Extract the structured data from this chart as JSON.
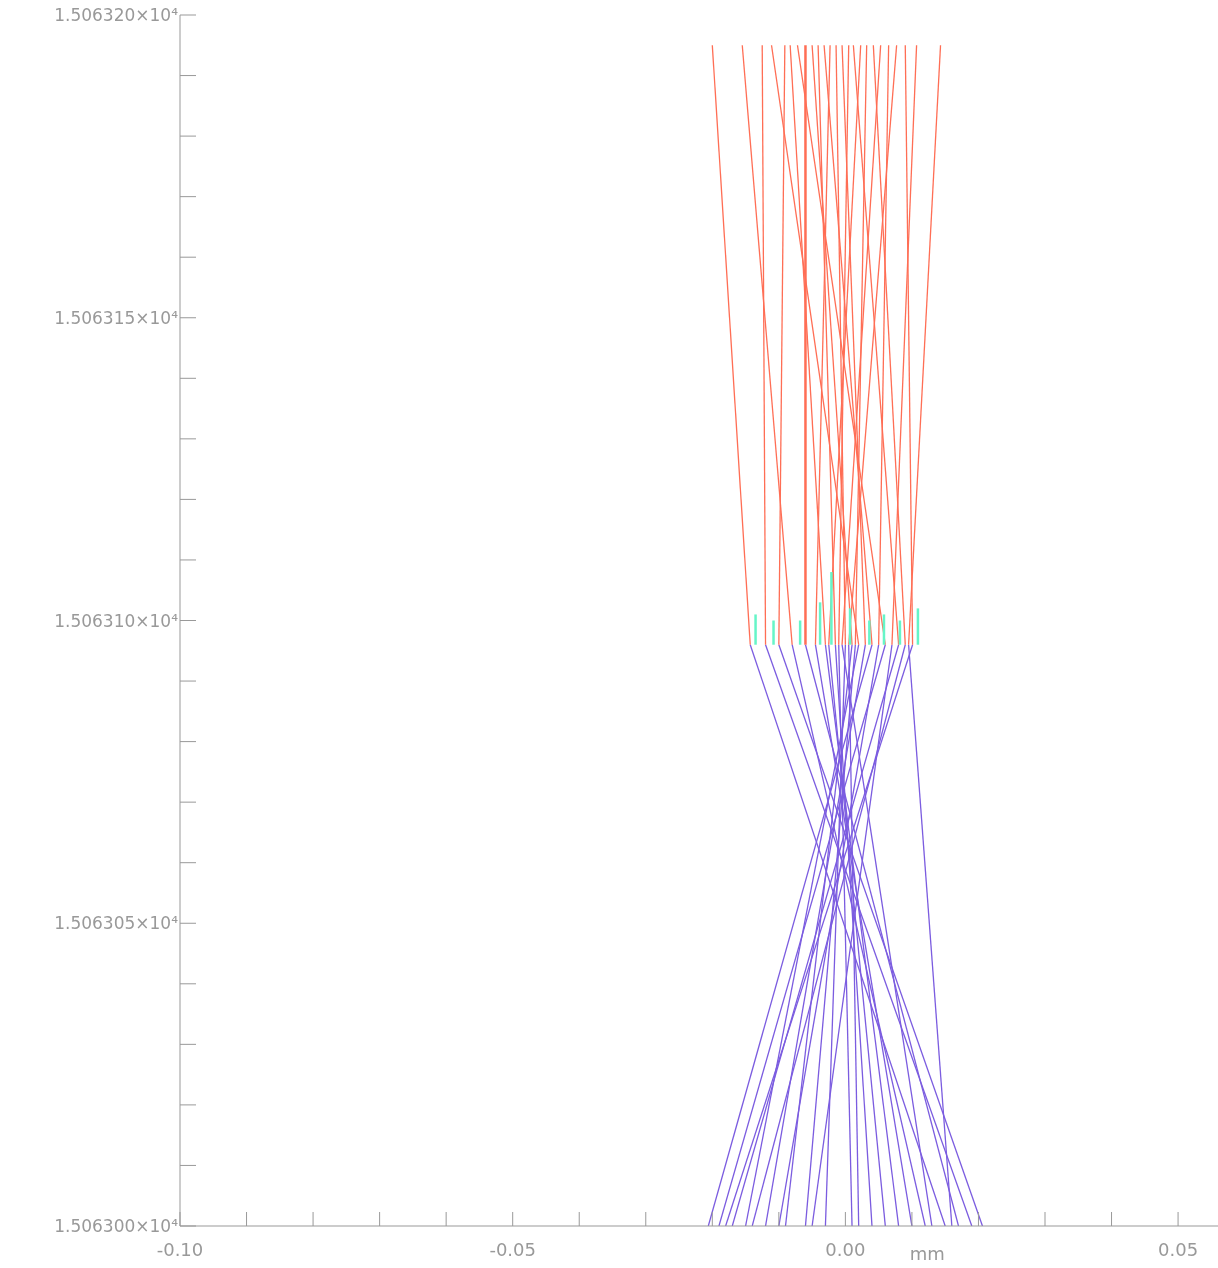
{
  "chart_data": {
    "type": "line",
    "xlabel": "mm",
    "xlim": [
      -0.1,
      0.056
    ],
    "ylim": [
      15063.0,
      15063.2
    ],
    "xticks": [
      {
        "value": -0.1,
        "label": "-0.10"
      },
      {
        "value": -0.09,
        "label": null
      },
      {
        "value": -0.08,
        "label": null
      },
      {
        "value": -0.07,
        "label": null
      },
      {
        "value": -0.06,
        "label": null
      },
      {
        "value": -0.05,
        "label": "-0.05"
      },
      {
        "value": -0.04,
        "label": null
      },
      {
        "value": -0.03,
        "label": null
      },
      {
        "value": -0.02,
        "label": null
      },
      {
        "value": -0.01,
        "label": null
      },
      {
        "value": 0,
        "label": "0.00"
      },
      {
        "value": 0.01,
        "label": null
      },
      {
        "value": 0.02,
        "label": null
      },
      {
        "value": 0.03,
        "label": null
      },
      {
        "value": 0.04,
        "label": null
      },
      {
        "value": 0.05,
        "label": "0.05"
      }
    ],
    "yticks": [
      {
        "value": 15063.0,
        "label": "1.506300×10⁴"
      },
      {
        "value": 15063.01,
        "label": null
      },
      {
        "value": 15063.02,
        "label": null
      },
      {
        "value": 15063.03,
        "label": null
      },
      {
        "value": 15063.04,
        "label": null
      },
      {
        "value": 15063.05,
        "label": "1.506305×10⁴"
      },
      {
        "value": 15063.06,
        "label": null
      },
      {
        "value": 15063.07,
        "label": null
      },
      {
        "value": 15063.08,
        "label": null
      },
      {
        "value": 15063.09,
        "label": null
      },
      {
        "value": 15063.1,
        "label": "1.506310×10⁴"
      },
      {
        "value": 15063.11,
        "label": null
      },
      {
        "value": 15063.12,
        "label": null
      },
      {
        "value": 15063.13,
        "label": null
      },
      {
        "value": 15063.14,
        "label": null
      },
      {
        "value": 15063.15,
        "label": "1.506315×10⁴"
      },
      {
        "value": 15063.16,
        "label": null
      },
      {
        "value": 15063.17,
        "label": null
      },
      {
        "value": 15063.18,
        "label": null
      },
      {
        "value": 15063.19,
        "label": null
      },
      {
        "value": 15063.2,
        "label": "1.506320×10⁴"
      }
    ],
    "series": [
      {
        "type": "line",
        "color": "#7b5ce0",
        "x": [
          -0.0143,
          0.015
        ],
        "values": [
          15063.096,
          15063.0
        ]
      },
      {
        "type": "line",
        "color": "#7b5ce0",
        "x": [
          -0.008,
          0.012
        ],
        "values": [
          15063.096,
          15063.0
        ]
      },
      {
        "type": "line",
        "color": "#7b5ce0",
        "x": [
          -0.012,
          0.019
        ],
        "values": [
          15063.096,
          15063.0
        ]
      },
      {
        "type": "line",
        "color": "#7b5ce0",
        "x": [
          0.002,
          -0.015
        ],
        "values": [
          15063.096,
          15063.0
        ]
      },
      {
        "type": "line",
        "color": "#7b5ce0",
        "x": [
          -0.01,
          0.0206
        ],
        "values": [
          15063.096,
          15063.0
        ]
      },
      {
        "type": "line",
        "color": "#7b5ce0",
        "x": [
          -0.003,
          0.008
        ],
        "values": [
          15063.096,
          15063.0
        ]
      },
      {
        "type": "line",
        "color": "#7b5ce0",
        "x": [
          0.006,
          -0.019
        ],
        "values": [
          15063.096,
          15063.0
        ]
      },
      {
        "type": "line",
        "color": "#7b5ce0",
        "x": [
          -0.006,
          0.017
        ],
        "values": [
          15063.096,
          15063.0
        ]
      },
      {
        "type": "line",
        "color": "#7b5ce0",
        "x": [
          0.001,
          -0.009
        ],
        "values": [
          15063.096,
          15063.0
        ]
      },
      {
        "type": "line",
        "color": "#7b5ce0",
        "x": [
          -0.0015,
          0.004
        ],
        "values": [
          15063.096,
          15063.0
        ]
      },
      {
        "type": "line",
        "color": "#7b5ce0",
        "x": [
          0.004,
          -0.0206
        ],
        "values": [
          15063.096,
          15063.0
        ]
      },
      {
        "type": "line",
        "color": "#7b5ce0",
        "x": [
          -0.0045,
          0.01
        ],
        "values": [
          15063.096,
          15063.0
        ]
      },
      {
        "type": "line",
        "color": "#7b5ce0",
        "x": [
          0.0,
          -0.003
        ],
        "values": [
          15063.096,
          15063.0
        ]
      },
      {
        "type": "line",
        "color": "#7b5ce0",
        "x": [
          0.003,
          -0.012
        ],
        "values": [
          15063.096,
          15063.0
        ]
      },
      {
        "type": "line",
        "color": "#7b5ce0",
        "x": [
          -0.001,
          0.001
        ],
        "values": [
          15063.096,
          15063.0
        ]
      },
      {
        "type": "line",
        "color": "#7b5ce0",
        "x": [
          0.008,
          -0.017
        ],
        "values": [
          15063.096,
          15063.0
        ]
      },
      {
        "type": "line",
        "color": "#7b5ce0",
        "x": [
          -0.0025,
          0.006
        ],
        "values": [
          15063.096,
          15063.0
        ]
      },
      {
        "type": "line",
        "color": "#7b5ce0",
        "x": [
          0.0015,
          -0.006
        ],
        "values": [
          15063.096,
          15063.0
        ]
      },
      {
        "type": "line",
        "color": "#7b5ce0",
        "x": [
          0.009,
          -0.014
        ],
        "values": [
          15063.096,
          15063.0
        ]
      },
      {
        "type": "line",
        "color": "#7b5ce0",
        "x": [
          -0.0005,
          0.013
        ],
        "values": [
          15063.096,
          15063.0
        ]
      },
      {
        "type": "line",
        "color": "#7b5ce0",
        "x": [
          0.005,
          -0.01
        ],
        "values": [
          15063.096,
          15063.0
        ]
      },
      {
        "type": "line",
        "color": "#7b5ce0",
        "x": [
          0.0005,
          0.002
        ],
        "values": [
          15063.096,
          15063.0
        ]
      },
      {
        "type": "line",
        "color": "#7b5ce0",
        "x": [
          0.0101,
          -0.018
        ],
        "values": [
          15063.096,
          15063.0
        ]
      },
      {
        "type": "line",
        "color": "#7b5ce0",
        "x": [
          0.007,
          -0.005
        ],
        "values": [
          15063.096,
          15063.0
        ]
      },
      {
        "type": "line",
        "color": "#7b5ce0",
        "x": [
          0.0095,
          0.016
        ],
        "values": [
          15063.096,
          15063.0
        ]
      },
      {
        "type": "line",
        "color": "#ff6e55",
        "x": [
          -0.02,
          -0.0143
        ],
        "values": [
          15063.195,
          15063.096
        ]
      },
      {
        "type": "line",
        "color": "#ff6e55",
        "x": [
          -0.0155,
          -0.008
        ],
        "values": [
          15063.195,
          15063.096
        ]
      },
      {
        "type": "line",
        "color": "#ff6e55",
        "x": [
          -0.0125,
          -0.012
        ],
        "values": [
          15063.195,
          15063.096
        ]
      },
      {
        "type": "line",
        "color": "#ff6e55",
        "x": [
          -0.0111,
          0.002
        ],
        "values": [
          15063.195,
          15063.096
        ]
      },
      {
        "type": "line",
        "color": "#ff6e55",
        "x": [
          -0.0091,
          -0.01
        ],
        "values": [
          15063.195,
          15063.096
        ]
      },
      {
        "type": "line",
        "color": "#ff6e55",
        "x": [
          -0.0083,
          -0.003
        ],
        "values": [
          15063.195,
          15063.096
        ]
      },
      {
        "type": "line",
        "color": "#ff6e55",
        "x": [
          -0.0072,
          0.006
        ],
        "values": [
          15063.195,
          15063.096
        ]
      },
      {
        "type": "line",
        "color": "#ff6e55",
        "x": [
          -0.006,
          -0.006
        ],
        "values": [
          15063.195,
          15063.096
        ]
      },
      {
        "type": "line",
        "color": "#ff6e55",
        "x": [
          -0.005,
          0.001
        ],
        "values": [
          15063.195,
          15063.096
        ]
      },
      {
        "type": "line",
        "color": "#ff6e55",
        "x": [
          -0.0041,
          -0.0015
        ],
        "values": [
          15063.195,
          15063.096
        ]
      },
      {
        "type": "line",
        "color": "#ff6e55",
        "x": [
          -0.0032,
          0.004
        ],
        "values": [
          15063.195,
          15063.096
        ]
      },
      {
        "type": "line",
        "color": "#ff6e55",
        "x": [
          -0.0023,
          -0.0045
        ],
        "values": [
          15063.195,
          15063.096
        ]
      },
      {
        "type": "line",
        "color": "#ff6e55",
        "x": [
          -0.0014,
          0.0
        ],
        "values": [
          15063.195,
          15063.096
        ]
      },
      {
        "type": "line",
        "color": "#ff6e55",
        "x": [
          -0.0005,
          0.003
        ],
        "values": [
          15063.195,
          15063.096
        ]
      },
      {
        "type": "line",
        "color": "#ff6e55",
        "x": [
          0.0005,
          -0.001
        ],
        "values": [
          15063.195,
          15063.096
        ]
      },
      {
        "type": "line",
        "color": "#ff6e55",
        "x": [
          0.0012,
          0.008
        ],
        "values": [
          15063.195,
          15063.096
        ]
      },
      {
        "type": "line",
        "color": "#ff6e55",
        "x": [
          0.0023,
          -0.0025
        ],
        "values": [
          15063.195,
          15063.096
        ]
      },
      {
        "type": "line",
        "color": "#ff6e55",
        "x": [
          0.0032,
          0.0015
        ],
        "values": [
          15063.195,
          15063.096
        ]
      },
      {
        "type": "line",
        "color": "#ff6e55",
        "x": [
          0.0042,
          0.009
        ],
        "values": [
          15063.195,
          15063.096
        ]
      },
      {
        "type": "line",
        "color": "#ff6e55",
        "x": [
          0.0053,
          -0.0005
        ],
        "values": [
          15063.195,
          15063.096
        ]
      },
      {
        "type": "line",
        "color": "#ff6e55",
        "x": [
          0.0065,
          0.005
        ],
        "values": [
          15063.195,
          15063.096
        ]
      },
      {
        "type": "line",
        "color": "#ff6e55",
        "x": [
          0.0077,
          0.0005
        ],
        "values": [
          15063.195,
          15063.096
        ]
      },
      {
        "type": "line",
        "color": "#ff6e55",
        "x": [
          0.009,
          0.0101
        ],
        "values": [
          15063.195,
          15063.096
        ]
      },
      {
        "type": "line",
        "color": "#ff6e55",
        "x": [
          0.0107,
          0.007
        ],
        "values": [
          15063.195,
          15063.096
        ]
      },
      {
        "type": "line",
        "color": "#ff6e55",
        "x": [
          0.0143,
          0.0095
        ],
        "values": [
          15063.195,
          15063.096
        ]
      },
      {
        "type": "line",
        "color": "#66f5c8",
        "x": [
          -0.0135,
          -0.0135
        ],
        "values": [
          15063.096,
          15063.101
        ]
      },
      {
        "type": "line",
        "color": "#66f5c8",
        "x": [
          -0.0108,
          -0.0108
        ],
        "values": [
          15063.096,
          15063.1
        ]
      },
      {
        "type": "line",
        "color": "#66f5c8",
        "x": [
          -0.0068,
          -0.0068
        ],
        "values": [
          15063.096,
          15063.1
        ]
      },
      {
        "type": "line",
        "color": "#66f5c8",
        "x": [
          -0.0038,
          -0.0038
        ],
        "values": [
          15063.096,
          15063.103
        ]
      },
      {
        "type": "line",
        "color": "#66f5c8",
        "x": [
          0.0007,
          0.0007
        ],
        "values": [
          15063.096,
          15063.102
        ]
      },
      {
        "type": "line",
        "color": "#66f5c8",
        "x": [
          -0.0021,
          -0.0021
        ],
        "values": [
          15063.096,
          15063.108
        ]
      },
      {
        "type": "line",
        "color": "#66f5c8",
        "x": [
          0.0036,
          0.0036
        ],
        "values": [
          15063.096,
          15063.1
        ]
      },
      {
        "type": "line",
        "color": "#66f5c8",
        "x": [
          0.0058,
          0.0058
        ],
        "values": [
          15063.096,
          15063.101
        ]
      },
      {
        "type": "line",
        "color": "#66f5c8",
        "x": [
          0.0082,
          0.0082
        ],
        "values": [
          15063.096,
          15063.1
        ]
      },
      {
        "type": "line",
        "color": "#66f5c8",
        "x": [
          0.0109,
          0.0109
        ],
        "values": [
          15063.096,
          15063.102
        ]
      }
    ]
  }
}
